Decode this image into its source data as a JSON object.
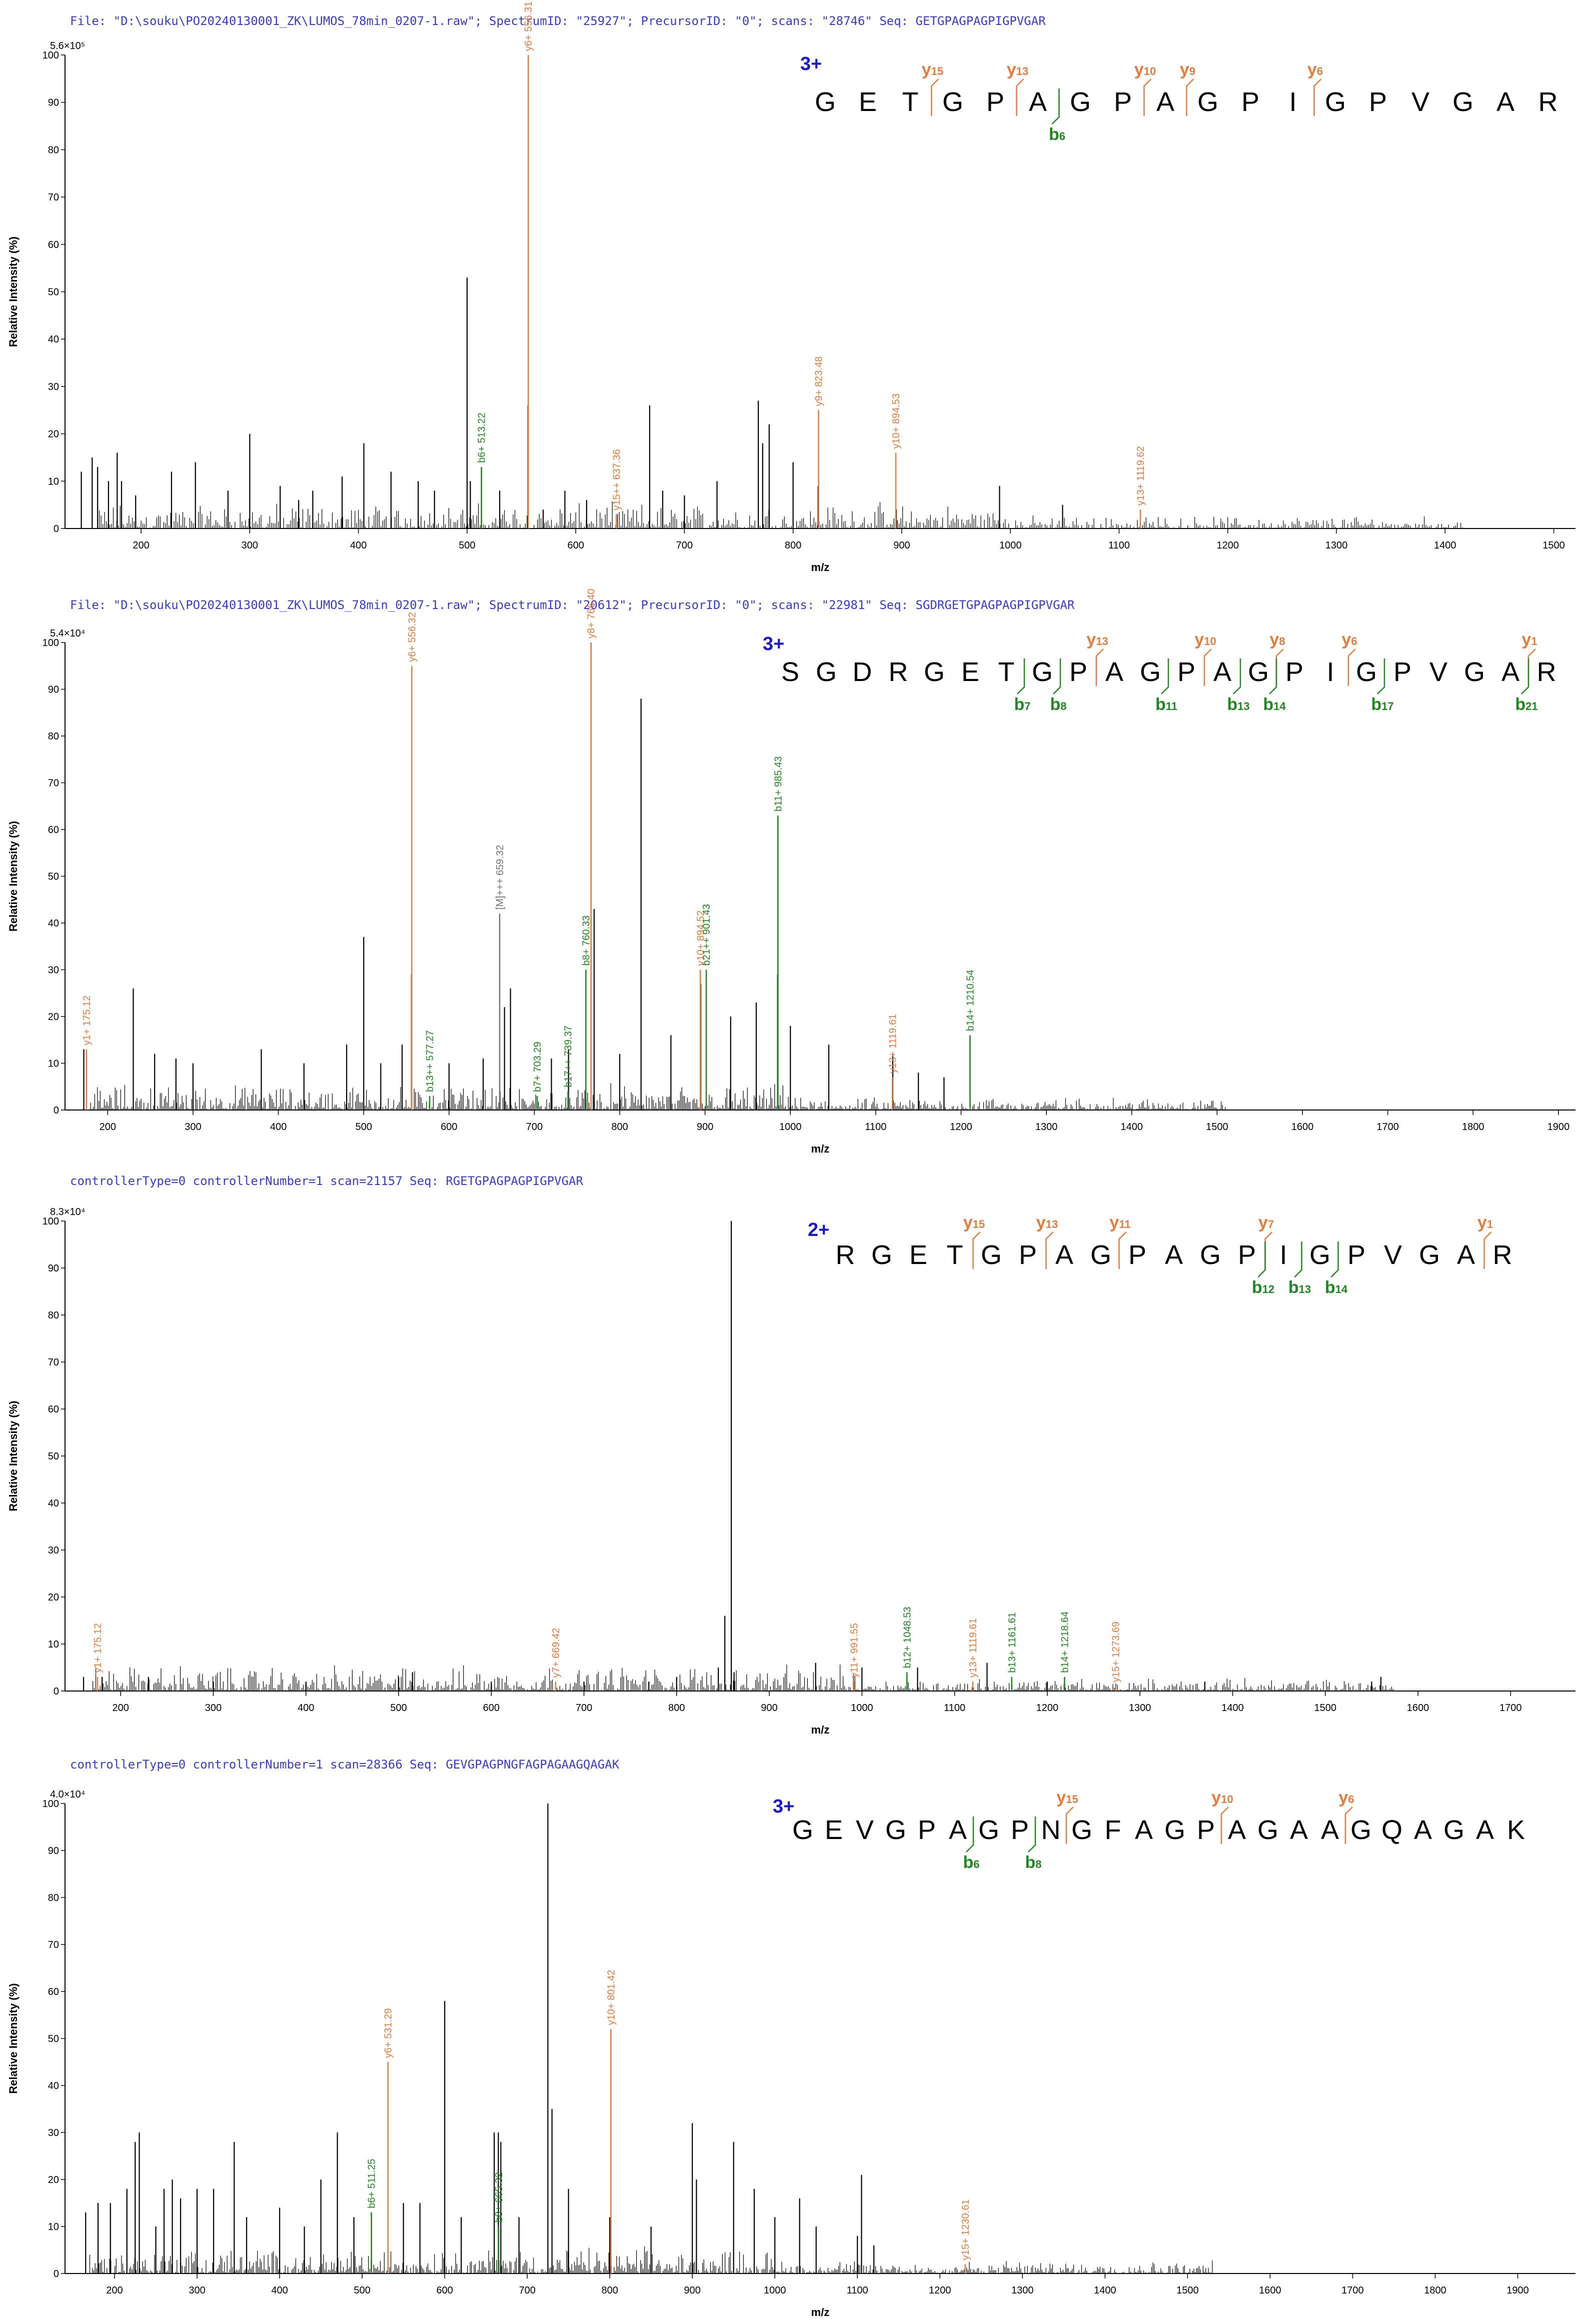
{
  "colors": {
    "y_ion": "#e87a3a",
    "b_ion": "#1d8a1d",
    "precursor": "#777777",
    "peak": "#000000",
    "header": "#3a3ad8",
    "charge": "#1a1acc"
  },
  "chart_data": [
    {
      "type": "bar",
      "header": "File: \"D:\\souku\\PO20240130001_ZK\\LUMOS_78min_0207-1.raw\"; SpectrumID: \"25927\"; PrecursorID: \"0\"; scans: \"28746\"",
      "seq_label": "Seq: GETGPAGPAGPIGPVGAR",
      "intensity_max": "5.6×10⁵",
      "xlabel": "m/z",
      "ylabel": "Relative Intensity (%)",
      "xlim": [
        130,
        1520
      ],
      "x_ticks": [
        200,
        300,
        400,
        500,
        600,
        700,
        800,
        900,
        1000,
        1100,
        1200,
        1300,
        1400,
        1500
      ],
      "ylim": [
        0,
        100
      ],
      "y_ticks": [
        0,
        10,
        20,
        30,
        40,
        50,
        60,
        70,
        80,
        90,
        100
      ],
      "charge": "3+",
      "sequence": [
        "G",
        "E",
        "T",
        "G",
        "P",
        "A",
        "G",
        "P",
        "A",
        "G",
        "P",
        "I",
        "G",
        "P",
        "V",
        "G",
        "A",
        "R"
      ],
      "y_marks": [
        {
          "after": 3,
          "label": "y",
          "num": "15"
        },
        {
          "after": 5,
          "label": "y",
          "num": "13"
        },
        {
          "after": 8,
          "label": "y",
          "num": "10"
        },
        {
          "after": 9,
          "label": "y",
          "num": "9"
        },
        {
          "after": 12,
          "label": "y",
          "num": "6"
        }
      ],
      "b_marks": [
        {
          "after": 6,
          "label": "b",
          "num": "6"
        }
      ],
      "labeled_peaks": [
        {
          "mz": 513.22,
          "rel": 13,
          "ion": "b",
          "text": "b6+ 513.22"
        },
        {
          "mz": 556.31,
          "rel": 100,
          "ion": "y",
          "text": "y6+ 556.31"
        },
        {
          "mz": 637.36,
          "rel": 3,
          "ion": "y",
          "text": "y15++ 637.36"
        },
        {
          "mz": 823.48,
          "rel": 25,
          "ion": "y",
          "text": "y9+ 823.48"
        },
        {
          "mz": 894.53,
          "rel": 16,
          "ion": "y",
          "text": "y10+ 894.53"
        },
        {
          "mz": 1119.62,
          "rel": 4,
          "ion": "y",
          "text": "y13+ 1119.62"
        }
      ],
      "peaks": [
        [
          145,
          12
        ],
        [
          155,
          15
        ],
        [
          160,
          13
        ],
        [
          170,
          10
        ],
        [
          178,
          16
        ],
        [
          182,
          10
        ],
        [
          195,
          7
        ],
        [
          228,
          12
        ],
        [
          250,
          14
        ],
        [
          280,
          8
        ],
        [
          300,
          20
        ],
        [
          328,
          9
        ],
        [
          345,
          6
        ],
        [
          358,
          8
        ],
        [
          385,
          11
        ],
        [
          405,
          18
        ],
        [
          430,
          12
        ],
        [
          455,
          10
        ],
        [
          470,
          8
        ],
        [
          500,
          53
        ],
        [
          503,
          10
        ],
        [
          530,
          8
        ],
        [
          556,
          26
        ],
        [
          570,
          4
        ],
        [
          590,
          8
        ],
        [
          610,
          6
        ],
        [
          668,
          26
        ],
        [
          680,
          8
        ],
        [
          700,
          7
        ],
        [
          730,
          10
        ],
        [
          768,
          27
        ],
        [
          772,
          18
        ],
        [
          778,
          22
        ],
        [
          800,
          14
        ],
        [
          823,
          9
        ],
        [
          895,
          4
        ],
        [
          990,
          9
        ],
        [
          1048,
          5
        ]
      ]
    },
    {
      "type": "bar",
      "header": "File: \"D:\\souku\\PO20240130001_ZK\\LUMOS_78min_0207-1.raw\"; SpectrumID: \"20612\"; PrecursorID: \"0\"; scans: \"22981\"",
      "seq_label": "Seq: SGDRGETGPAGPAGPIGPVGAR",
      "intensity_max": "5.4×10⁴",
      "xlabel": "m/z",
      "ylabel": "Relative Intensity (%)",
      "xlim": [
        150,
        1920
      ],
      "x_ticks": [
        200,
        300,
        400,
        500,
        600,
        700,
        800,
        900,
        1000,
        1100,
        1200,
        1300,
        1400,
        1500,
        1600,
        1700,
        1800,
        1900
      ],
      "ylim": [
        0,
        100
      ],
      "y_ticks": [
        0,
        10,
        20,
        30,
        40,
        50,
        60,
        70,
        80,
        90,
        100
      ],
      "charge": "3+",
      "sequence": [
        "S",
        "G",
        "D",
        "R",
        "G",
        "E",
        "T",
        "G",
        "P",
        "A",
        "G",
        "P",
        "A",
        "G",
        "P",
        "I",
        "G",
        "P",
        "V",
        "G",
        "A",
        "R"
      ],
      "y_marks": [
        {
          "after": 9,
          "label": "y",
          "num": "13"
        },
        {
          "after": 12,
          "label": "y",
          "num": "10"
        },
        {
          "after": 14,
          "label": "y",
          "num": "8"
        },
        {
          "after": 16,
          "label": "y",
          "num": "6"
        },
        {
          "after": 21,
          "label": "y",
          "num": "1"
        }
      ],
      "b_marks": [
        {
          "after": 7,
          "label": "b",
          "num": "7"
        },
        {
          "after": 8,
          "label": "b",
          "num": "8"
        },
        {
          "after": 11,
          "label": "b",
          "num": "11"
        },
        {
          "after": 13,
          "label": "b",
          "num": "13"
        },
        {
          "after": 14,
          "label": "b",
          "num": "14"
        },
        {
          "after": 17,
          "label": "b",
          "num": "17"
        },
        {
          "after": 21,
          "label": "b",
          "num": "21"
        }
      ],
      "labeled_peaks": [
        {
          "mz": 175.12,
          "rel": 13,
          "ion": "y",
          "text": "y1+ 175.12"
        },
        {
          "mz": 556.32,
          "rel": 95,
          "ion": "y",
          "text": "y6+ 556.32"
        },
        {
          "mz": 577.27,
          "rel": 3,
          "ion": "b",
          "text": "b13++ 577.27"
        },
        {
          "mz": 659.32,
          "rel": 42,
          "ion": "p",
          "text": "[M]+++ 659.32"
        },
        {
          "mz": 703.29,
          "rel": 3,
          "ion": "b",
          "text": "b7+ 703.29"
        },
        {
          "mz": 739.37,
          "rel": 4,
          "ion": "b",
          "text": "b17++ 739.37"
        },
        {
          "mz": 760.33,
          "rel": 30,
          "ion": "b",
          "text": "b8+ 760.33"
        },
        {
          "mz": 766.4,
          "rel": 100,
          "ion": "y",
          "text": "y8+ 766.40"
        },
        {
          "mz": 894.52,
          "rel": 30,
          "ion": "y",
          "text": "y10+ 894.52"
        },
        {
          "mz": 901.43,
          "rel": 30,
          "ion": "b",
          "text": "b21++ 901.43"
        },
        {
          "mz": 985.43,
          "rel": 63,
          "ion": "b",
          "text": "b11+ 985.43"
        },
        {
          "mz": 1119.61,
          "rel": 7,
          "ion": "y",
          "text": "y13+ 1119.61"
        },
        {
          "mz": 1210.54,
          "rel": 16,
          "ion": "b",
          "text": "b14+ 1210.54"
        }
      ],
      "peaks": [
        [
          172,
          13
        ],
        [
          230,
          26
        ],
        [
          255,
          12
        ],
        [
          280,
          11
        ],
        [
          300,
          10
        ],
        [
          380,
          13
        ],
        [
          430,
          10
        ],
        [
          480,
          14
        ],
        [
          500,
          37
        ],
        [
          520,
          10
        ],
        [
          545,
          14
        ],
        [
          556,
          29
        ],
        [
          600,
          10
        ],
        [
          640,
          11
        ],
        [
          665,
          22
        ],
        [
          672,
          26
        ],
        [
          720,
          11
        ],
        [
          740,
          13
        ],
        [
          770,
          43
        ],
        [
          800,
          12
        ],
        [
          825,
          88
        ],
        [
          860,
          16
        ],
        [
          895,
          27
        ],
        [
          930,
          20
        ],
        [
          960,
          23
        ],
        [
          985,
          29
        ],
        [
          1000,
          18
        ],
        [
          1045,
          14
        ],
        [
          1120,
          12
        ],
        [
          1150,
          8
        ],
        [
          1180,
          7
        ]
      ]
    },
    {
      "type": "bar",
      "header": "controllerType=0 controllerNumber=1 scan=21157",
      "seq_label": "Seq: RGETGPAGPAGPIGPVGAR",
      "intensity_max": "8.3×10⁴",
      "xlabel": "m/z",
      "ylabel": "Relative Intensity (%)",
      "xlim": [
        140,
        1770
      ],
      "x_ticks": [
        200,
        300,
        400,
        500,
        600,
        700,
        800,
        900,
        1000,
        1100,
        1200,
        1300,
        1400,
        1500,
        1600,
        1700
      ],
      "ylim": [
        0,
        100
      ],
      "y_ticks": [
        0,
        10,
        20,
        30,
        40,
        50,
        60,
        70,
        80,
        90,
        100
      ],
      "charge": "2+",
      "sequence": [
        "R",
        "G",
        "E",
        "T",
        "G",
        "P",
        "A",
        "G",
        "P",
        "A",
        "G",
        "P",
        "I",
        "G",
        "P",
        "V",
        "G",
        "A",
        "R"
      ],
      "y_marks": [
        {
          "after": 4,
          "label": "y",
          "num": "15"
        },
        {
          "after": 6,
          "label": "y",
          "num": "13"
        },
        {
          "after": 8,
          "label": "y",
          "num": "11"
        },
        {
          "after": 12,
          "label": "y",
          "num": "7"
        },
        {
          "after": 18,
          "label": "y",
          "num": "1"
        }
      ],
      "b_marks": [
        {
          "after": 12,
          "label": "b",
          "num": "12"
        },
        {
          "after": 13,
          "label": "b",
          "num": "13"
        },
        {
          "after": 14,
          "label": "b",
          "num": "14"
        }
      ],
      "labeled_peaks": [
        {
          "mz": 175.12,
          "rel": 3,
          "ion": "y",
          "text": "y1+ 175.12"
        },
        {
          "mz": 669.42,
          "rel": 2,
          "ion": "y",
          "text": "y7+ 669.42"
        },
        {
          "mz": 991.55,
          "rel": 2,
          "ion": "y",
          "text": "y11+ 991.55"
        },
        {
          "mz": 1048.53,
          "rel": 4,
          "ion": "b",
          "text": "b12+ 1048.53"
        },
        {
          "mz": 1119.61,
          "rel": 2,
          "ion": "y",
          "text": "y13+ 1119.61"
        },
        {
          "mz": 1161.61,
          "rel": 3,
          "ion": "b",
          "text": "b13+ 1161.61"
        },
        {
          "mz": 1218.64,
          "rel": 3,
          "ion": "b",
          "text": "b14+ 1218.64"
        },
        {
          "mz": 1273.69,
          "rel": 1,
          "ion": "y",
          "text": "y15+ 1273.69"
        }
      ],
      "peaks": [
        [
          160,
          3
        ],
        [
          180,
          3
        ],
        [
          230,
          3
        ],
        [
          300,
          2
        ],
        [
          400,
          2
        ],
        [
          500,
          3
        ],
        [
          515,
          4
        ],
        [
          600,
          2
        ],
        [
          700,
          2
        ],
        [
          770,
          2
        ],
        [
          800,
          3
        ],
        [
          845,
          5
        ],
        [
          852,
          16
        ],
        [
          859,
          100
        ],
        [
          862,
          4
        ],
        [
          950,
          6
        ],
        [
          1000,
          5
        ],
        [
          1060,
          5
        ],
        [
          1135,
          6
        ],
        [
          1200,
          2
        ],
        [
          1370,
          2
        ],
        [
          1550,
          2
        ],
        [
          1560,
          3
        ]
      ]
    },
    {
      "type": "bar",
      "header": "controllerType=0 controllerNumber=1 scan=28366",
      "seq_label": "Seq: GEVGPAGPNGFAGPAGAAGQAGAK",
      "intensity_max": "4.0×10⁴",
      "xlabel": "m/z",
      "ylabel": "Relative Intensity (%)",
      "xlim": [
        140,
        1970
      ],
      "x_ticks": [
        200,
        300,
        400,
        500,
        600,
        700,
        800,
        900,
        1000,
        1100,
        1200,
        1300,
        1400,
        1500,
        1600,
        1700,
        1800,
        1900
      ],
      "ylim": [
        0,
        100
      ],
      "y_ticks": [
        0,
        10,
        20,
        30,
        40,
        50,
        60,
        70,
        80,
        90,
        100
      ],
      "charge": "3+",
      "sequence": [
        "G",
        "E",
        "V",
        "G",
        "P",
        "A",
        "G",
        "P",
        "N",
        "G",
        "F",
        "A",
        "G",
        "P",
        "A",
        "G",
        "A",
        "A",
        "G",
        "Q",
        "A",
        "G",
        "A",
        "K"
      ],
      "y_marks": [
        {
          "after": 9,
          "label": "y",
          "num": "15"
        },
        {
          "after": 14,
          "label": "y",
          "num": "10"
        },
        {
          "after": 18,
          "label": "y",
          "num": "6"
        }
      ],
      "b_marks": [
        {
          "after": 6,
          "label": "b",
          "num": "6"
        },
        {
          "after": 8,
          "label": "b",
          "num": "8"
        }
      ],
      "labeled_peaks": [
        {
          "mz": 511.25,
          "rel": 13,
          "ion": "b",
          "text": "b6+ 511.25"
        },
        {
          "mz": 531.29,
          "rel": 45,
          "ion": "y",
          "text": "y6+ 531.29"
        },
        {
          "mz": 665.32,
          "rel": 10,
          "ion": "b",
          "text": "b8+ 665.32"
        },
        {
          "mz": 801.42,
          "rel": 52,
          "ion": "y",
          "text": "y10+ 801.42"
        },
        {
          "mz": 1230.61,
          "rel": 2,
          "ion": "y",
          "text": "y15+ 1230.61"
        }
      ],
      "peaks": [
        [
          165,
          13
        ],
        [
          180,
          15
        ],
        [
          195,
          15
        ],
        [
          215,
          18
        ],
        [
          225,
          28
        ],
        [
          230,
          30
        ],
        [
          250,
          10
        ],
        [
          260,
          18
        ],
        [
          270,
          20
        ],
        [
          280,
          16
        ],
        [
          300,
          18
        ],
        [
          320,
          18
        ],
        [
          345,
          28
        ],
        [
          360,
          12
        ],
        [
          400,
          14
        ],
        [
          430,
          10
        ],
        [
          450,
          20
        ],
        [
          470,
          30
        ],
        [
          490,
          12
        ],
        [
          550,
          15
        ],
        [
          570,
          15
        ],
        [
          600,
          58
        ],
        [
          620,
          12
        ],
        [
          660,
          30
        ],
        [
          665,
          30
        ],
        [
          668,
          28
        ],
        [
          690,
          12
        ],
        [
          725,
          100
        ],
        [
          730,
          35
        ],
        [
          750,
          18
        ],
        [
          800,
          12
        ],
        [
          850,
          10
        ],
        [
          900,
          32
        ],
        [
          905,
          20
        ],
        [
          950,
          28
        ],
        [
          975,
          18
        ],
        [
          1000,
          12
        ],
        [
          1030,
          16
        ],
        [
          1050,
          10
        ],
        [
          1100,
          8
        ],
        [
          1105,
          21
        ],
        [
          1120,
          6
        ]
      ]
    }
  ]
}
